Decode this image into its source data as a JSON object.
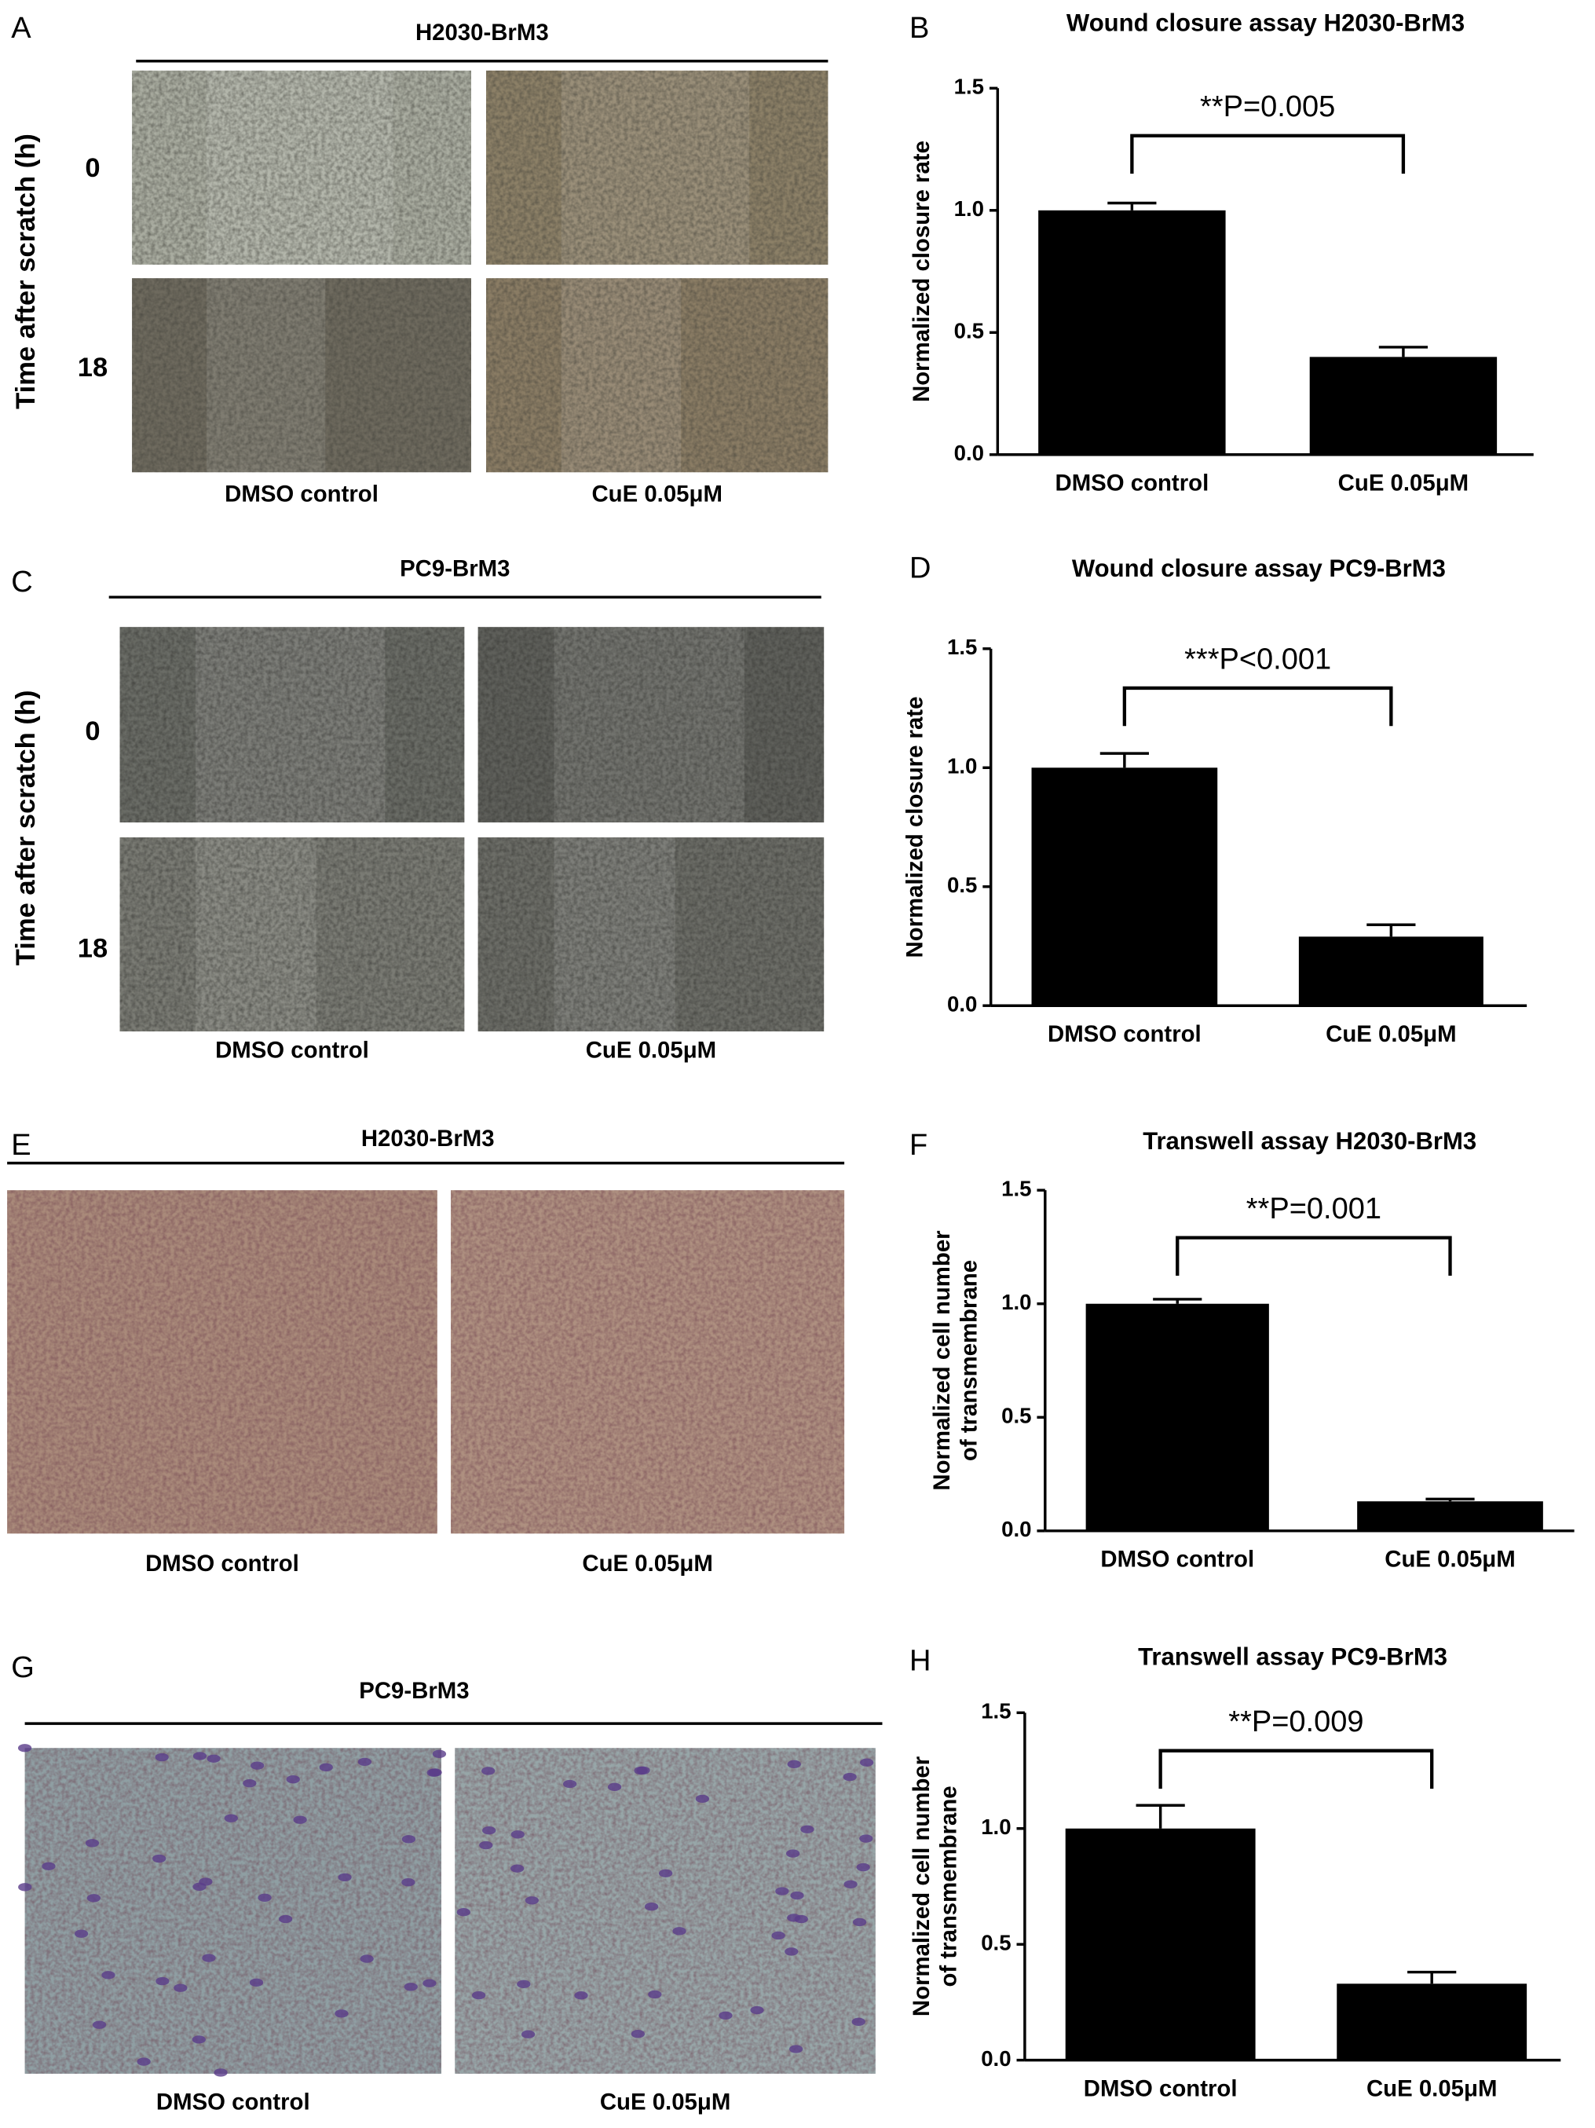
{
  "panels": [
    {
      "letter": "A",
      "header": "H2030-BrM3",
      "row_axis_label": "Time after scratch (h)",
      "rows": [
        "0",
        "18"
      ],
      "columns": [
        "DMSO control",
        "CuE 0.05μM"
      ]
    },
    {
      "letter": "C",
      "header": "PC9-BrM3",
      "row_axis_label": "Time after scratch (h)",
      "rows": [
        "0",
        "18"
      ],
      "columns": [
        "DMSO control",
        "CuE 0.05μM"
      ]
    },
    {
      "letter": "E",
      "header": "H2030-BrM3",
      "columns": [
        "DMSO control",
        "CuE 0.05μM"
      ]
    },
    {
      "letter": "G",
      "header": "PC9-BrM3",
      "columns": [
        "DMSO control",
        "CuE 0.05μM"
      ]
    }
  ],
  "chart_data": [
    {
      "type": "bar",
      "letter": "B",
      "title": "Wound closure assay H2030-BrM3",
      "ylabel": [
        "Normalized closure rate"
      ],
      "annotation": "**P=0.005",
      "categories": [
        "DMSO control",
        "CuE 0.05μM"
      ],
      "values": [
        1.0,
        0.4
      ],
      "errors": [
        0.03,
        0.04
      ],
      "color": "#000000",
      "ylim": [
        0,
        1.5
      ],
      "yticks": [
        {
          "value": 0,
          "label": "0.0"
        },
        0.5,
        {
          "value": 1,
          "label": "1.0"
        },
        1.5
      ]
    },
    {
      "type": "bar",
      "letter": "D",
      "title": "Wound closure assay PC9-BrM3",
      "ylabel": [
        "Normalized closure rate"
      ],
      "annotation": "***P<0.001",
      "categories": [
        "DMSO control",
        "CuE 0.05μM"
      ],
      "values": [
        1.0,
        0.29
      ],
      "errors": [
        0.06,
        0.05
      ],
      "color": "#000000",
      "ylim": [
        0,
        1.5
      ],
      "yticks": [
        {
          "value": 0,
          "label": "0.0"
        },
        0.5,
        {
          "value": 1,
          "label": "1.0"
        },
        1.5
      ]
    },
    {
      "type": "bar",
      "letter": "F",
      "title": "Transwell assay H2030-BrM3",
      "ylabel": [
        "Normalized cell number",
        "of transmembrane"
      ],
      "annotation": "**P=0.001",
      "categories": [
        "DMSO control",
        "CuE 0.05μM"
      ],
      "values": [
        1.0,
        0.13
      ],
      "errors": [
        0.02,
        0.01
      ],
      "color": "#000000",
      "ylim": [
        0,
        1.5
      ],
      "yticks": [
        {
          "value": 0,
          "label": "0.0"
        },
        0.5,
        {
          "value": 1,
          "label": "1.0"
        },
        1.5
      ]
    },
    {
      "type": "bar",
      "letter": "H",
      "title": "Transwell assay PC9-BrM3",
      "ylabel": [
        "Normalized cell number",
        "of transmembrane"
      ],
      "annotation": "**P=0.009",
      "categories": [
        "DMSO control",
        "CuE 0.05μM"
      ],
      "values": [
        1.0,
        0.33
      ],
      "errors": [
        0.1,
        0.05
      ],
      "color": "#000000",
      "ylim": [
        0,
        1.5
      ],
      "yticks": [
        {
          "value": 0,
          "label": "0.0"
        },
        0.5,
        {
          "value": 1,
          "label": "1.0"
        },
        1.5
      ]
    }
  ]
}
